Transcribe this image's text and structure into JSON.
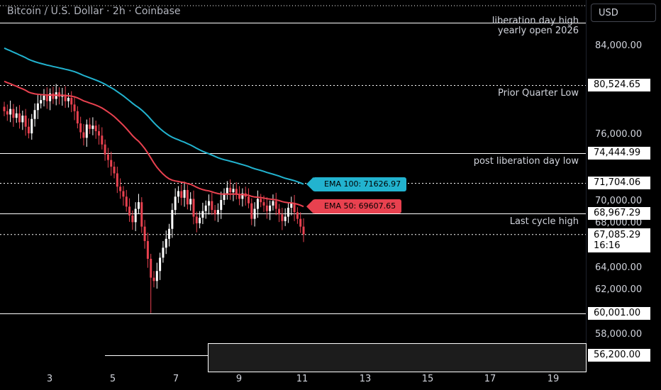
{
  "header": {
    "title": "Bitcoin / U.S. Dollar · 2h · Coinbase",
    "currency": "USD"
  },
  "colors": {
    "background": "#000000",
    "candle_up": "#ffffff",
    "candle_down": "#e8414f",
    "ema50": "#e8414f",
    "ema100": "#22b3cf",
    "level_line": "#ffffff"
  },
  "chart_data": {
    "type": "candlestick",
    "x_tick_labels": [
      "3",
      "5",
      "7",
      "9",
      "11",
      "13",
      "15",
      "17",
      "19"
    ],
    "y_tick_labels": [
      "84,000.00",
      "76,000.00",
      "70,000.00",
      "68,000.00",
      "64,000.00",
      "62,000.00",
      "58,000.00"
    ],
    "y_range": [
      55000,
      87500
    ],
    "price_levels": [
      {
        "label": "liberation day high\nyearly open 2026",
        "price": 86200,
        "style": "solid",
        "tag": ""
      },
      {
        "label": "Prior Quarter Low",
        "price": 80524.65,
        "style": "dotted",
        "tag": "80,524.65"
      },
      {
        "label": "post liberation day low",
        "price": 74444.99,
        "style": "solid",
        "tag": "74,444.99"
      },
      {
        "label": "",
        "price": 71704.06,
        "style": "dotted",
        "tag": "71,704.06"
      },
      {
        "label": "Last cycle high",
        "price": 68967.29,
        "style": "solid",
        "tag": "68,967.29"
      },
      {
        "label": "",
        "price": 60001.0,
        "style": "solid",
        "tag": "60,001.00"
      },
      {
        "label": "",
        "price": 56200.0,
        "style": "solid",
        "tag": "56,200.00"
      }
    ],
    "current_price": {
      "price": 67085.29,
      "label": "67,085.29",
      "countdown": "16:16"
    },
    "ema50": {
      "label": "EMA 50: 69607.65",
      "value": 69607.65
    },
    "ema100": {
      "label": "EMA 100: 71626.97",
      "value": 71626.97
    },
    "ohlc_closes": [
      78200,
      77900,
      78400,
      77600,
      78000,
      77200,
      77800,
      76800,
      76200,
      77500,
      78300,
      78900,
      79200,
      79600,
      79100,
      79800,
      79300,
      79900,
      79500,
      79700,
      79100,
      79400,
      78800,
      78200,
      77100,
      76300,
      75800,
      77000,
      76600,
      76900,
      76400,
      76000,
      75200,
      74300,
      73800,
      73200,
      72600,
      71400,
      71000,
      70500,
      69600,
      68800,
      68200,
      69400,
      70000,
      67800,
      66500,
      64900,
      63200,
      62900,
      63800,
      65000,
      65900,
      66700,
      67600,
      69300,
      70500,
      71000,
      70400,
      71100,
      69800,
      70300,
      68700,
      68100,
      68600,
      69200,
      69700,
      70100,
      69300,
      68900,
      69300,
      70200,
      70800,
      71300,
      70900,
      71200,
      70700,
      70300,
      70800,
      70500,
      69900,
      68500,
      69400,
      70300,
      70000,
      69700,
      69200,
      69700,
      70100,
      69400,
      68900,
      68300,
      68700,
      69500,
      69900,
      69100,
      68500,
      67800,
      67100
    ]
  },
  "ui_labels": {
    "ema50_tag": "EMA 50: 69607.65",
    "ema100_tag": "EMA 100: 71626.97"
  }
}
